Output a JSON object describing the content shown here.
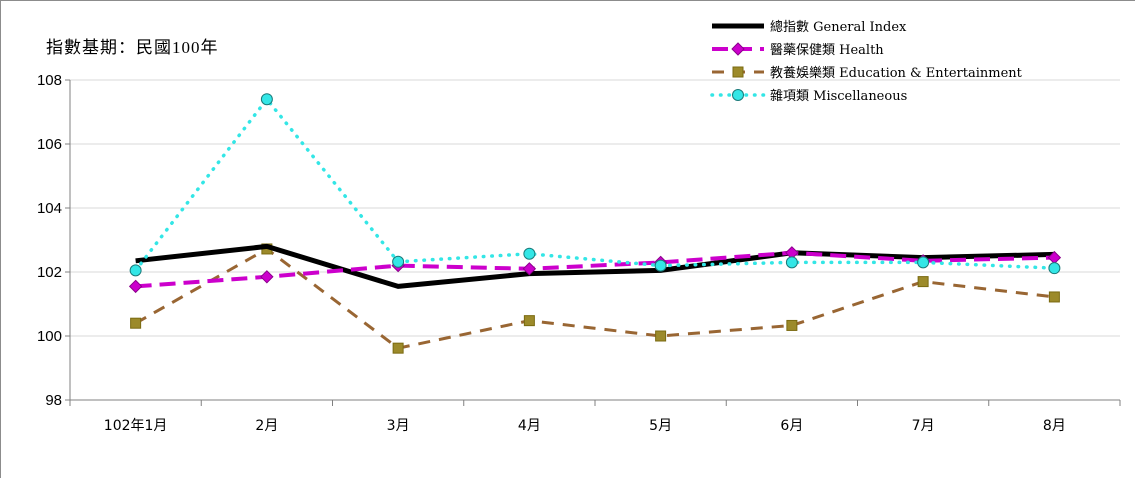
{
  "chart_data": {
    "type": "line",
    "note": "指數基期：民國100年",
    "categories": [
      "102年1月",
      "2月",
      "3月",
      "4月",
      "5月",
      "6月",
      "7月",
      "8月"
    ],
    "ylim": [
      98,
      108
    ],
    "yticks": [
      98,
      100,
      102,
      104,
      106,
      108
    ],
    "grid": true,
    "legend_position": "top-right",
    "series": [
      {
        "name": "總指數 General Index",
        "color": "#000000",
        "style": "solid",
        "marker": "none",
        "values": [
          102.35,
          102.8,
          101.55,
          101.95,
          102.05,
          102.6,
          102.45,
          102.55
        ]
      },
      {
        "name": "醫藥保健類 Health",
        "color": "#cc00cc",
        "style": "dashed",
        "marker": "diamond",
        "values": [
          101.55,
          101.85,
          102.2,
          102.1,
          102.3,
          102.6,
          102.35,
          102.45
        ]
      },
      {
        "name": "教養娛樂類 Education & Entertainment",
        "color": "#996633",
        "style": "dashed",
        "marker": "square",
        "values": [
          100.4,
          102.72,
          99.62,
          100.48,
          100.0,
          100.33,
          101.7,
          101.22
        ]
      },
      {
        "name": "雜項類 Miscellaneous",
        "color": "#33e6e6",
        "style": "dotted",
        "marker": "circle",
        "values": [
          102.05,
          107.4,
          102.32,
          102.57,
          102.2,
          102.3,
          102.3,
          102.12
        ]
      }
    ]
  }
}
